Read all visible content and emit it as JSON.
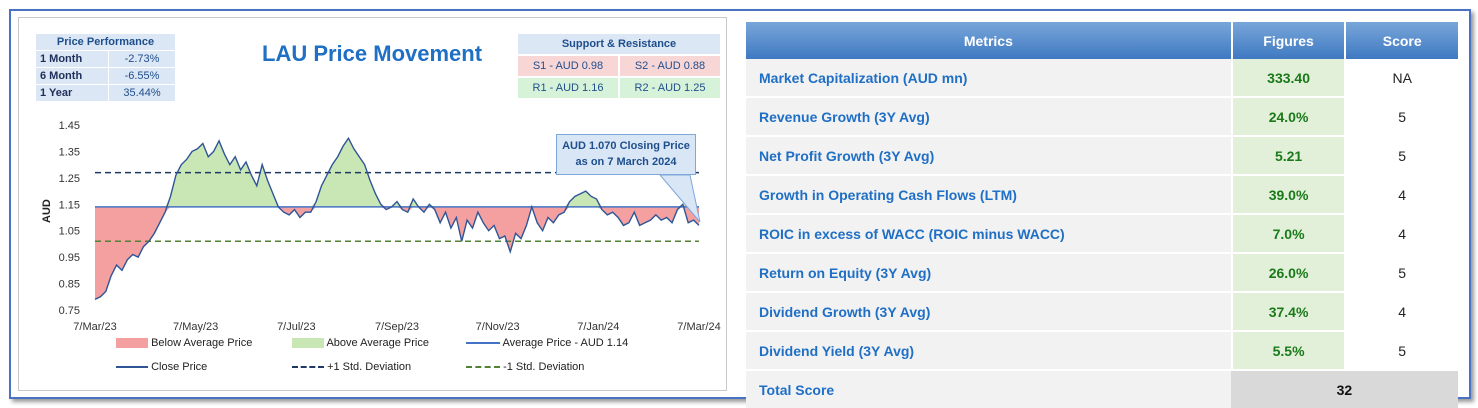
{
  "chart_title": "LAU Price Movement",
  "price_performance": {
    "header": "Price Performance",
    "rows": [
      {
        "label": "1 Month",
        "value": "-2.73%"
      },
      {
        "label": "6 Month",
        "value": "-6.55%"
      },
      {
        "label": "1 Year",
        "value": "35.44%"
      }
    ]
  },
  "support_resistance": {
    "header": "Support & Resistance",
    "s1": "S1 - AUD 0.98",
    "s2": "S2 - AUD 0.88",
    "r1": "R1 - AUD 1.16",
    "r2": "R2 - AUD 1.25"
  },
  "callout": {
    "line1": "AUD 1.070 Closing Price",
    "line2": "as on 7 March 2024"
  },
  "legend": {
    "below": "Below Average Price",
    "above": "Above Average Price",
    "average": "Average Price - AUD 1.14",
    "close": "Close Price",
    "plus_sd": "+1 Std. Deviation",
    "minus_sd": "-1 Std. Deviation"
  },
  "colors": {
    "below_fill": "#f4a0a0",
    "above_fill": "#c9e7b4",
    "line": "#2f5597",
    "avg_line": "#4472c4",
    "plus_sd": "#1f3864",
    "minus_sd": "#548235"
  },
  "chart_data": {
    "type": "line",
    "ylabel": "AUD",
    "ylim": [
      0.75,
      1.45
    ],
    "yticks": [
      "1.45",
      "1.35",
      "1.25",
      "1.15",
      "1.05",
      "0.95",
      "0.85",
      "0.75"
    ],
    "xticks": [
      "7/Mar/23",
      "7/May/23",
      "7/Jul/23",
      "7/Sep/23",
      "7/Nov/23",
      "7/Jan/24",
      "7/Mar/24"
    ],
    "average": 1.14,
    "plus_sd": 1.27,
    "minus_sd": 1.01,
    "series": [
      {
        "values": [
          0.79,
          0.8,
          0.82,
          0.88,
          0.92,
          0.9,
          0.94,
          0.96,
          0.95,
          0.99,
          1.01,
          1.04,
          1.08,
          1.12,
          1.18,
          1.26,
          1.3,
          1.32,
          1.35,
          1.36,
          1.38,
          1.33,
          1.35,
          1.39,
          1.34,
          1.3,
          1.33,
          1.28,
          1.31,
          1.26,
          1.22,
          1.3,
          1.24,
          1.19,
          1.14,
          1.12,
          1.11,
          1.13,
          1.1,
          1.12,
          1.12,
          1.16,
          1.22,
          1.26,
          1.3,
          1.33,
          1.37,
          1.4,
          1.36,
          1.33,
          1.3,
          1.24,
          1.19,
          1.15,
          1.13,
          1.14,
          1.16,
          1.13,
          1.12,
          1.17,
          1.14,
          1.12,
          1.15,
          1.13,
          1.08,
          1.12,
          1.06,
          1.1,
          1.01,
          1.09,
          1.06,
          1.12,
          1.08,
          1.05,
          1.07,
          1.02,
          1.03,
          0.97,
          1.04,
          1.02,
          1.07,
          1.14,
          1.08,
          1.05,
          1.1,
          1.08,
          1.11,
          1.12,
          1.16,
          1.18,
          1.19,
          1.2,
          1.18,
          1.17,
          1.13,
          1.11,
          1.12,
          1.1,
          1.07,
          1.08,
          1.12,
          1.07,
          1.08,
          1.09,
          1.11,
          1.09,
          1.1,
          1.08,
          1.13,
          1.15,
          1.08,
          1.09,
          1.07
        ]
      }
    ]
  },
  "metrics_table": {
    "headers": {
      "metric": "Metrics",
      "figures": "Figures",
      "score": "Score"
    },
    "rows": [
      {
        "metric": "Market Capitalization (AUD mn)",
        "figure": "333.40",
        "score": "NA"
      },
      {
        "metric": "Revenue Growth (3Y Avg)",
        "figure": "24.0%",
        "score": "5"
      },
      {
        "metric": "Net Profit Growth (3Y Avg)",
        "figure": "5.21",
        "score": "5"
      },
      {
        "metric": "Growth in Operating Cash Flows (LTM)",
        "figure": "39.0%",
        "score": "4"
      },
      {
        "metric": "ROIC in excess of WACC (ROIC minus WACC)",
        "figure": "7.0%",
        "score": "4"
      },
      {
        "metric": "Return on Equity (3Y Avg)",
        "figure": "26.0%",
        "score": "5"
      },
      {
        "metric": "Dividend Growth (3Y Avg)",
        "figure": "37.4%",
        "score": "4"
      },
      {
        "metric": "Dividend Yield (3Y Avg)",
        "figure": "5.5%",
        "score": "5"
      }
    ],
    "total_label": "Total Score",
    "total_value": "32"
  }
}
